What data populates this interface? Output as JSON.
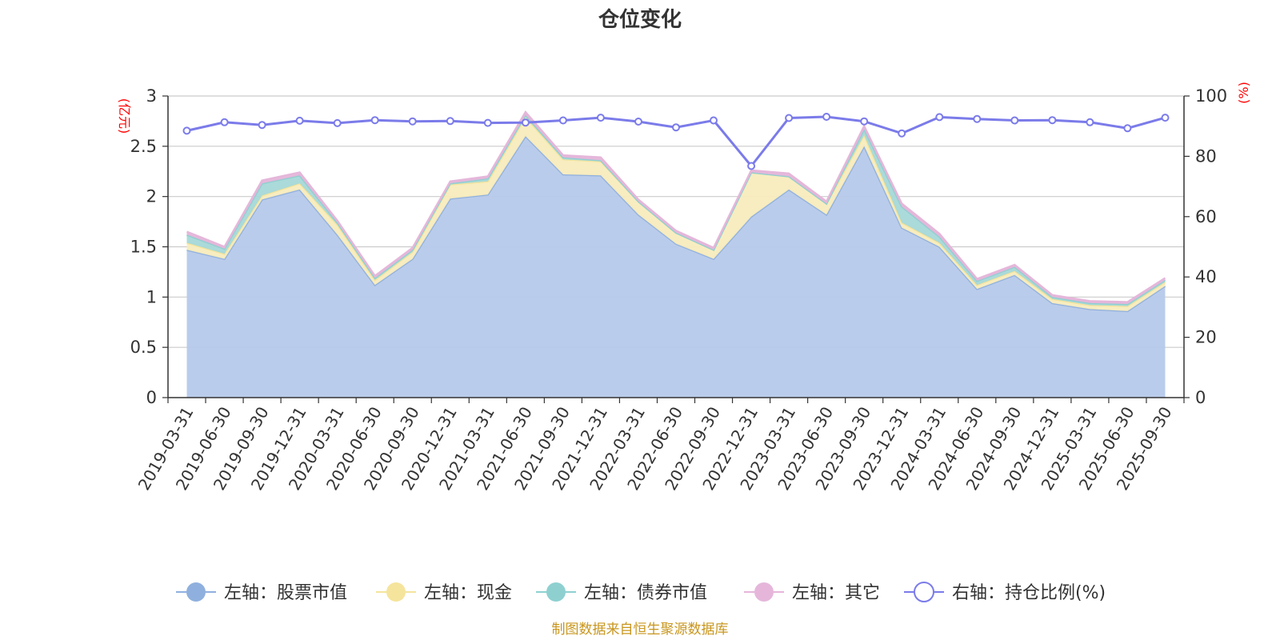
{
  "title": "仓位变化",
  "source": "制图数据来自恒生聚源数据库",
  "colors": {
    "stock": "#8fb0de",
    "stock_fill": "#b6c9ea",
    "cash": "#f5e49c",
    "cash_fill": "#f8ecbd",
    "bond": "#8ed0d0",
    "bond_fill": "#a6d8d8",
    "other": "#e5b6da",
    "ratio": "#7b7bea",
    "unit": "#ff0000",
    "source": "#c8961e"
  },
  "chart_data": {
    "type": "area",
    "stacked": true,
    "categories": [
      "2019-03-31",
      "2019-06-30",
      "2019-09-30",
      "2019-12-31",
      "2020-03-31",
      "2020-06-30",
      "2020-09-30",
      "2020-12-31",
      "2021-03-31",
      "2021-06-30",
      "2021-09-30",
      "2021-12-31",
      "2022-03-31",
      "2022-06-30",
      "2022-09-30",
      "2022-12-31",
      "2023-03-31",
      "2023-06-30",
      "2023-09-30",
      "2023-12-31",
      "2024-03-31",
      "2024-06-30",
      "2024-09-30",
      "2024-12-31",
      "2025-03-31",
      "2025-06-30",
      "2025-09-30"
    ],
    "left_axis": {
      "unit": "(亿元)",
      "ylim": [
        0,
        3
      ],
      "ticks": [
        "0",
        "0.5",
        "1",
        "1.5",
        "2",
        "2.5",
        "3"
      ],
      "tick_values": [
        0,
        0.5,
        1,
        1.5,
        2,
        2.5,
        3
      ]
    },
    "right_axis": {
      "unit": "(%)",
      "ylim": [
        0,
        100
      ],
      "ticks": [
        "0",
        "20",
        "40",
        "60",
        "80",
        "100"
      ],
      "tick_values": [
        0,
        20,
        40,
        60,
        80,
        100
      ]
    },
    "series": [
      {
        "key": "stock",
        "name": "左轴：股票市值",
        "axis": "left",
        "values": [
          1.47,
          1.38,
          1.97,
          2.07,
          1.62,
          1.12,
          1.38,
          1.98,
          2.02,
          2.6,
          2.22,
          2.21,
          1.82,
          1.53,
          1.38,
          1.8,
          2.07,
          1.82,
          2.5,
          1.69,
          1.5,
          1.08,
          1.22,
          0.94,
          0.88,
          0.86,
          1.11
        ]
      },
      {
        "key": "cash",
        "name": "左轴：现金",
        "axis": "left",
        "values": [
          0.07,
          0.05,
          0.04,
          0.06,
          0.1,
          0.05,
          0.07,
          0.14,
          0.13,
          0.19,
          0.15,
          0.14,
          0.13,
          0.11,
          0.09,
          0.44,
          0.13,
          0.11,
          0.11,
          0.05,
          0.04,
          0.04,
          0.04,
          0.04,
          0.04,
          0.05,
          0.04
        ]
      },
      {
        "key": "bond",
        "name": "左轴：债券市值",
        "axis": "left",
        "values": [
          0.08,
          0.05,
          0.12,
          0.08,
          0.02,
          0.02,
          0.02,
          0.01,
          0.03,
          0.02,
          0.02,
          0.01,
          0.0,
          0.0,
          0.0,
          0.0,
          0.0,
          0.0,
          0.06,
          0.16,
          0.06,
          0.04,
          0.04,
          0.02,
          0.02,
          0.02,
          0.02
        ]
      },
      {
        "key": "other",
        "name": "左轴：其它",
        "axis": "left",
        "values": [
          0.03,
          0.02,
          0.03,
          0.03,
          0.02,
          0.02,
          0.02,
          0.02,
          0.02,
          0.03,
          0.02,
          0.03,
          0.02,
          0.02,
          0.02,
          0.02,
          0.03,
          0.02,
          0.03,
          0.03,
          0.03,
          0.02,
          0.02,
          0.02,
          0.02,
          0.02,
          0.02
        ]
      },
      {
        "key": "ratio",
        "name": "右轴：持仓比例(%)",
        "axis": "right",
        "type": "line",
        "values": [
          88.5,
          91.3,
          90.4,
          91.8,
          91.0,
          92.0,
          91.6,
          91.7,
          91.1,
          91.2,
          91.9,
          92.8,
          91.5,
          89.6,
          91.9,
          76.8,
          92.7,
          93.1,
          91.6,
          87.6,
          93.0,
          92.4,
          91.9,
          92.0,
          91.3,
          89.3,
          92.8
        ]
      }
    ],
    "grid": true,
    "legend_position": "bottom"
  }
}
